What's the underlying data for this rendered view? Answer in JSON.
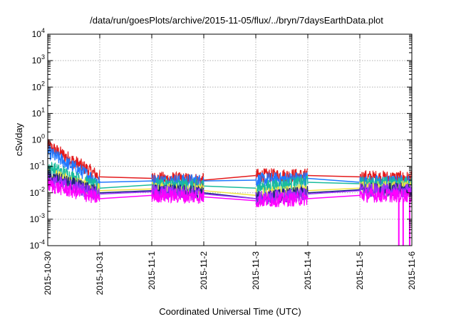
{
  "chart_data": {
    "type": "line",
    "title": "/data/run/goesPlots/archive/2015-11-05/flux/../bryn/7daysEarthData.plot",
    "xlabel": "Coordinated Universal Time (UTC)",
    "ylabel": "cSv/day",
    "y_scale": "log",
    "ylim": [
      0.0001,
      10000
    ],
    "y_ticks": [
      {
        "base": "10",
        "exp": "-4"
      },
      {
        "base": "10",
        "exp": "-3"
      },
      {
        "base": "10",
        "exp": "-2"
      },
      {
        "base": "10",
        "exp": "-1"
      },
      {
        "base": "10",
        "exp": "0"
      },
      {
        "base": "10",
        "exp": "1"
      },
      {
        "base": "10",
        "exp": "2"
      },
      {
        "base": "10",
        "exp": "3"
      },
      {
        "base": "10",
        "exp": "4"
      }
    ],
    "x_ticks": [
      "2015-10-30",
      "2015-10-31",
      "2015-11-1",
      "2015-11-2",
      "2015-11-3",
      "2015-11-4",
      "2015-11-5",
      "2015-11-6"
    ],
    "xlim": [
      "2015-10-30",
      "2015-11-06"
    ],
    "grid": true,
    "legend": "none",
    "data_segments": [
      {
        "start": "2015-10-30T00:00",
        "end": "2015-10-31T00:00"
      },
      {
        "start": "2015-11-01T00:00",
        "end": "2015-11-02T00:00"
      },
      {
        "start": "2015-11-03T00:00",
        "end": "2015-11-04T00:00"
      },
      {
        "start": "2015-11-05T00:00",
        "end": "2015-11-06T00:00"
      }
    ],
    "series": [
      {
        "color": "#e41a1c",
        "segment_levels": [
          {
            "start": 0.6,
            "end": 0.04
          },
          {
            "start": 0.035,
            "end": 0.03
          },
          {
            "start": 0.045,
            "end": 0.045
          },
          {
            "start": 0.04,
            "end": 0.035
          }
        ]
      },
      {
        "color": "#1f78ff",
        "segment_levels": [
          {
            "start": 0.35,
            "end": 0.025
          },
          {
            "start": 0.028,
            "end": 0.028
          },
          {
            "start": 0.03,
            "end": 0.035
          },
          {
            "start": 0.025,
            "end": 0.025
          }
        ]
      },
      {
        "color": "#1abc9c",
        "segment_levels": [
          {
            "start": 0.1,
            "end": 0.015
          },
          {
            "start": 0.02,
            "end": 0.018
          },
          {
            "start": 0.015,
            "end": 0.025
          },
          {
            "start": 0.022,
            "end": 0.022
          }
        ]
      },
      {
        "color": "#f0e442",
        "segment_levels": [
          {
            "start": 0.05,
            "end": 0.012
          },
          {
            "start": 0.014,
            "end": 0.012
          },
          {
            "start": 0.008,
            "end": 0.012
          },
          {
            "start": 0.015,
            "end": 0.015
          }
        ]
      },
      {
        "color": "#1a237e",
        "segment_levels": [
          {
            "start": 0.04,
            "end": 0.01
          },
          {
            "start": 0.012,
            "end": 0.01
          },
          {
            "start": 0.006,
            "end": 0.01
          },
          {
            "start": 0.013,
            "end": 0.013
          }
        ]
      },
      {
        "color": "#9b30ff",
        "segment_levels": [
          {
            "start": 0.03,
            "end": 0.009
          },
          {
            "start": 0.011,
            "end": 0.009
          },
          {
            "start": 0.006,
            "end": 0.009
          },
          {
            "start": 0.012,
            "end": 0.012
          }
        ]
      },
      {
        "color": "#ff00ff",
        "segment_levels": [
          {
            "start": 0.02,
            "end": 0.006
          },
          {
            "start": 0.008,
            "end": 0.007
          },
          {
            "start": 0.005,
            "end": 0.006
          },
          {
            "start": 0.008,
            "end": 0.008
          }
        ]
      }
    ]
  }
}
